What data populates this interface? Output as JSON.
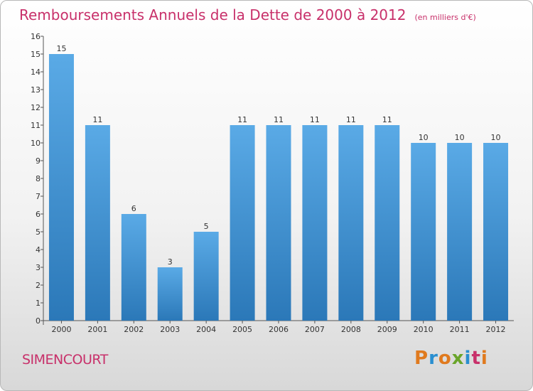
{
  "header": {
    "title": "Remboursements Annuels de la Dette de 2000 à 2012",
    "unit": "(en milliers d'€)"
  },
  "footer": {
    "commune": "SIMENCOURT",
    "logo": "Proxiti"
  },
  "colors": {
    "bar_light": "#5aaae6",
    "bar_dark": "#2b78b8",
    "title": "#c8306a",
    "axis_text": "#333333"
  },
  "chart_data": {
    "type": "bar",
    "title": "Remboursements Annuels de la Dette de 2000 à 2012",
    "subtitle": "(en milliers d'€)",
    "categories": [
      "2000",
      "2001",
      "2002",
      "2003",
      "2004",
      "2005",
      "2006",
      "2007",
      "2008",
      "2009",
      "2010",
      "2011",
      "2012"
    ],
    "values": [
      15,
      11,
      6,
      3,
      5,
      11,
      11,
      11,
      11,
      11,
      10,
      10,
      10
    ],
    "ylim": [
      0,
      16
    ],
    "yticks": [
      0,
      1,
      2,
      3,
      4,
      5,
      6,
      7,
      8,
      9,
      10,
      11,
      12,
      13,
      14,
      15,
      16
    ],
    "grid": false,
    "legend": "none",
    "data_labels": true
  }
}
